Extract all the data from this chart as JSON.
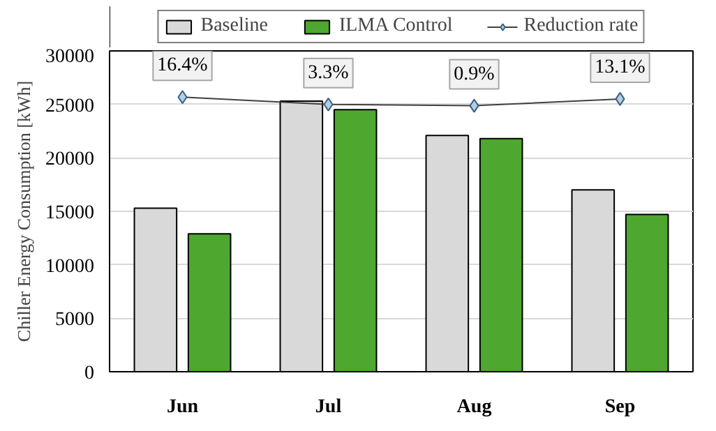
{
  "chart_data": {
    "type": "bar",
    "ylabel": "Chiller Energy Consumption [kWh]",
    "categories": [
      "Jun",
      "Jul",
      "Aug",
      "Sep"
    ],
    "series": [
      {
        "name": "Baseline",
        "color": "#d9d9d9",
        "values": [
          15300,
          25300,
          22100,
          17000
        ]
      },
      {
        "name": "ILMA Control",
        "color": "#4ea72e",
        "values": [
          12900,
          24500,
          21800,
          14700
        ]
      },
      {
        "name": "Reduction rate",
        "type": "line",
        "axis": "y2",
        "color": "#404040",
        "marker": "diamond",
        "values": [
          16.4,
          3.3,
          0.9,
          13.1
        ],
        "value_labels": [
          "16.4%",
          "3.3%",
          "0.9%",
          "13.1%"
        ]
      }
    ],
    "ylim": [
      0,
      30000
    ],
    "yticks": [
      0,
      5000,
      10000,
      15000,
      20000,
      25000,
      30000
    ],
    "y2lim": [
      -480,
      100
    ],
    "grid": "y",
    "legend": "top"
  }
}
